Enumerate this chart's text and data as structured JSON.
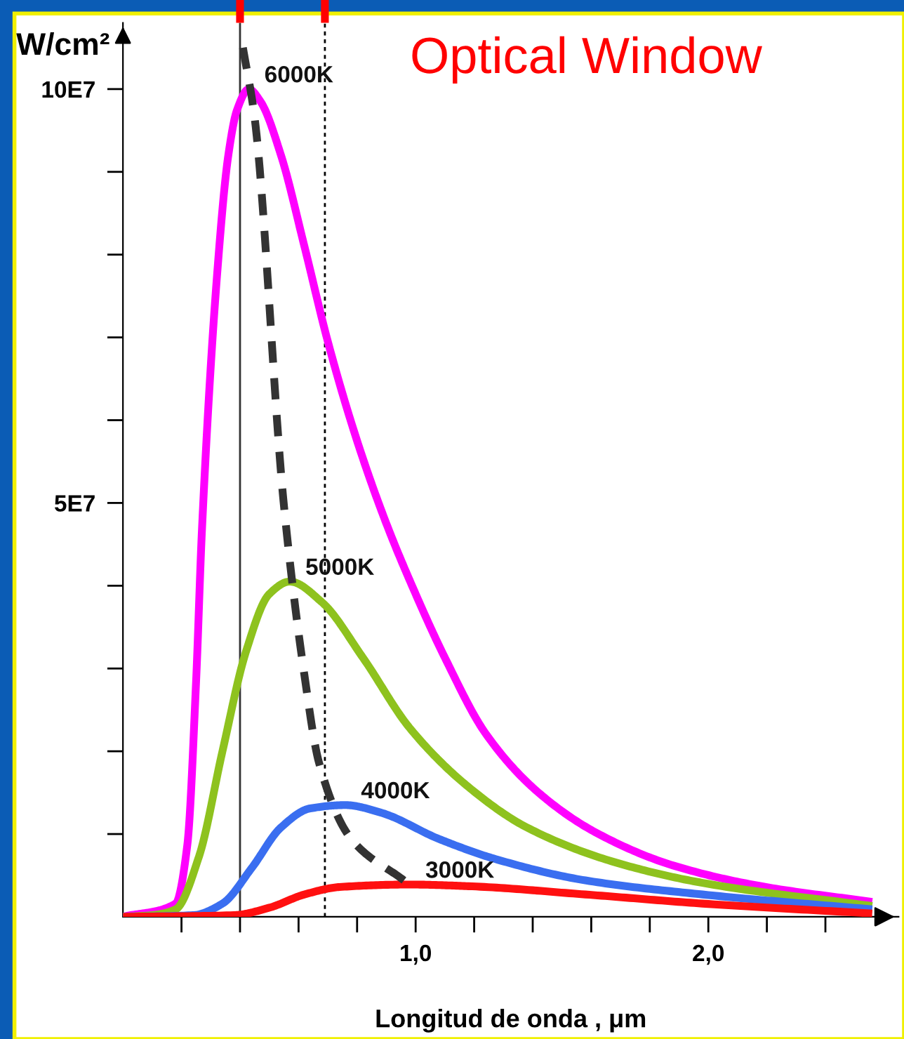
{
  "chart_data": {
    "type": "line",
    "xlabel": "Longitud de onda , μm",
    "ylabel": "W/cm²",
    "xlim": [
      0,
      2.65
    ],
    "ylim": [
      0,
      108000000
    ],
    "xticks": [
      {
        "value": 0.2,
        "label": null
      },
      {
        "value": 0.4,
        "label": null
      },
      {
        "value": 0.6,
        "label": null
      },
      {
        "value": 0.8,
        "label": null
      },
      {
        "value": 1.0,
        "label": "1,0"
      },
      {
        "value": 1.2,
        "label": null
      },
      {
        "value": 1.4,
        "label": null
      },
      {
        "value": 1.6,
        "label": null
      },
      {
        "value": 1.8,
        "label": null
      },
      {
        "value": 2.0,
        "label": "2,0"
      },
      {
        "value": 2.2,
        "label": null
      },
      {
        "value": 2.4,
        "label": null
      }
    ],
    "yticks": [
      {
        "value": 10000000,
        "label": null
      },
      {
        "value": 20000000,
        "label": null
      },
      {
        "value": 30000000,
        "label": null
      },
      {
        "value": 40000000,
        "label": null
      },
      {
        "value": 50000000,
        "label": "5E7"
      },
      {
        "value": 60000000,
        "label": null
      },
      {
        "value": 70000000,
        "label": null
      },
      {
        "value": 80000000,
        "label": null
      },
      {
        "value": 90000000,
        "label": null
      },
      {
        "value": 100000000,
        "label": "10E7"
      }
    ],
    "legend": false,
    "ref_lines": [
      {
        "axis": "x",
        "value": 0.4,
        "color": "#333333",
        "line_style": "solid"
      },
      {
        "axis": "x",
        "value": 0.69,
        "color": "#000000",
        "line_style": "dotted"
      }
    ],
    "annotations": [
      "Optical Window"
    ],
    "series": [
      {
        "name": "6000K",
        "color": "#ff00ff",
        "line_style": "solid",
        "x": [
          0,
          0.18,
          0.22,
          0.25,
          0.27,
          0.32,
          0.36,
          0.39,
          0.43,
          0.47,
          0.54,
          0.62,
          0.7,
          0.8,
          0.9,
          1.0,
          1.1,
          1.24,
          1.42,
          1.62,
          1.88,
          2.18,
          2.56
        ],
        "values": [
          0,
          1600000,
          8700000,
          28500000,
          46800000,
          76800000,
          92000000,
          97500000,
          100000000,
          98500000,
          92000000,
          81000000,
          69500000,
          57500000,
          47500000,
          39000000,
          31300000,
          22100000,
          15000000,
          10100000,
          6200000,
          3700000,
          1800000
        ]
      },
      {
        "name": "5000K",
        "color": "#8ec21e",
        "line_style": "solid",
        "x": [
          0,
          0.1,
          0.18,
          0.26,
          0.34,
          0.42,
          0.5,
          0.57,
          0.68,
          0.82,
          0.98,
          1.18,
          1.38,
          1.68,
          1.98,
          2.56
        ],
        "values": [
          0,
          200000,
          900000,
          7300000,
          20000000,
          32000000,
          39000000,
          40500000,
          38000000,
          31300000,
          22800000,
          15700000,
          10800000,
          6600000,
          4100000,
          1300000
        ]
      },
      {
        "name": "4000K",
        "color": "#3a6ef0",
        "line_style": "solid",
        "x": [
          0,
          0.24,
          0.34,
          0.44,
          0.54,
          0.64,
          0.76,
          0.88,
          1.08,
          1.28,
          1.58,
          1.98,
          2.56
        ],
        "values": [
          0,
          200000,
          1600000,
          5900000,
          10800000,
          13100000,
          13500000,
          12600000,
          9400000,
          6900000,
          4400000,
          2700000,
          900000
        ]
      },
      {
        "name": "3000K",
        "color": "#ff1010",
        "line_style": "solid",
        "x": [
          0,
          0.38,
          0.5,
          0.62,
          0.74,
          0.98,
          1.18,
          1.58,
          1.98,
          2.56
        ],
        "values": [
          0,
          200000,
          1100000,
          2700000,
          3600000,
          3900000,
          3700000,
          2700000,
          1600000,
          400000
        ]
      },
      {
        "color": "#333333",
        "line_style": "dashed",
        "x": [
          0.41,
          0.45,
          0.55,
          0.62,
          0.67,
          0.78,
          0.96
        ],
        "values": [
          105000000,
          96500000,
          49700000,
          29200000,
          18600000,
          9400000,
          4400000
        ]
      }
    ]
  }
}
